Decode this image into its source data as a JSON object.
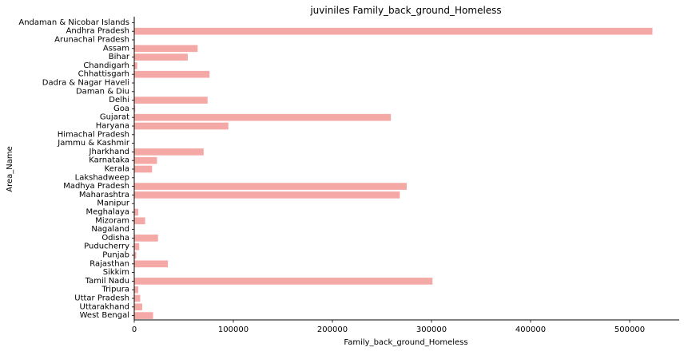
{
  "chart_data": {
    "type": "bar",
    "orientation": "horizontal",
    "title": "juviniles Family_back_ground_Homeless",
    "xlabel": "Family_back_ground_Homeless",
    "ylabel": "Area_Name",
    "xlim": [
      0,
      550000
    ],
    "xticks": [
      0,
      100000,
      200000,
      300000,
      400000,
      500000
    ],
    "xtick_labels": [
      "0",
      "100000",
      "200000",
      "300000",
      "400000",
      "500000"
    ],
    "bar_color": "#f4a9a6",
    "grid": false,
    "categories": [
      "Andaman & Nicobar Islands",
      "Andhra Pradesh",
      "Arunachal Pradesh",
      "Assam",
      "Bihar",
      "Chandigarh",
      "Chhattisgarh",
      "Dadra & Nagar Haveli",
      "Daman & Diu",
      "Delhi",
      "Goa",
      "Gujarat",
      "Haryana",
      "Himachal Pradesh",
      "Jammu & Kashmir",
      "Jharkhand",
      "Karnataka",
      "Kerala",
      "Lakshadweep",
      "Madhya Pradesh",
      "Maharashtra",
      "Manipur",
      "Meghalaya",
      "Mizoram",
      "Nagaland",
      "Odisha",
      "Puducherry",
      "Punjab",
      "Rajasthan",
      "Sikkim",
      "Tamil Nadu",
      "Tripura",
      "Uttar Pradesh",
      "Uttarakhand",
      "West Bengal"
    ],
    "values": [
      100,
      523000,
      0,
      64000,
      54000,
      3000,
      76000,
      0,
      0,
      74000,
      1000,
      259000,
      95000,
      500,
      0,
      70000,
      23000,
      18000,
      0,
      275000,
      268000,
      0,
      4000,
      11000,
      0,
      24000,
      5000,
      2000,
      34000,
      0,
      301000,
      4000,
      6000,
      8000,
      19000
    ]
  }
}
